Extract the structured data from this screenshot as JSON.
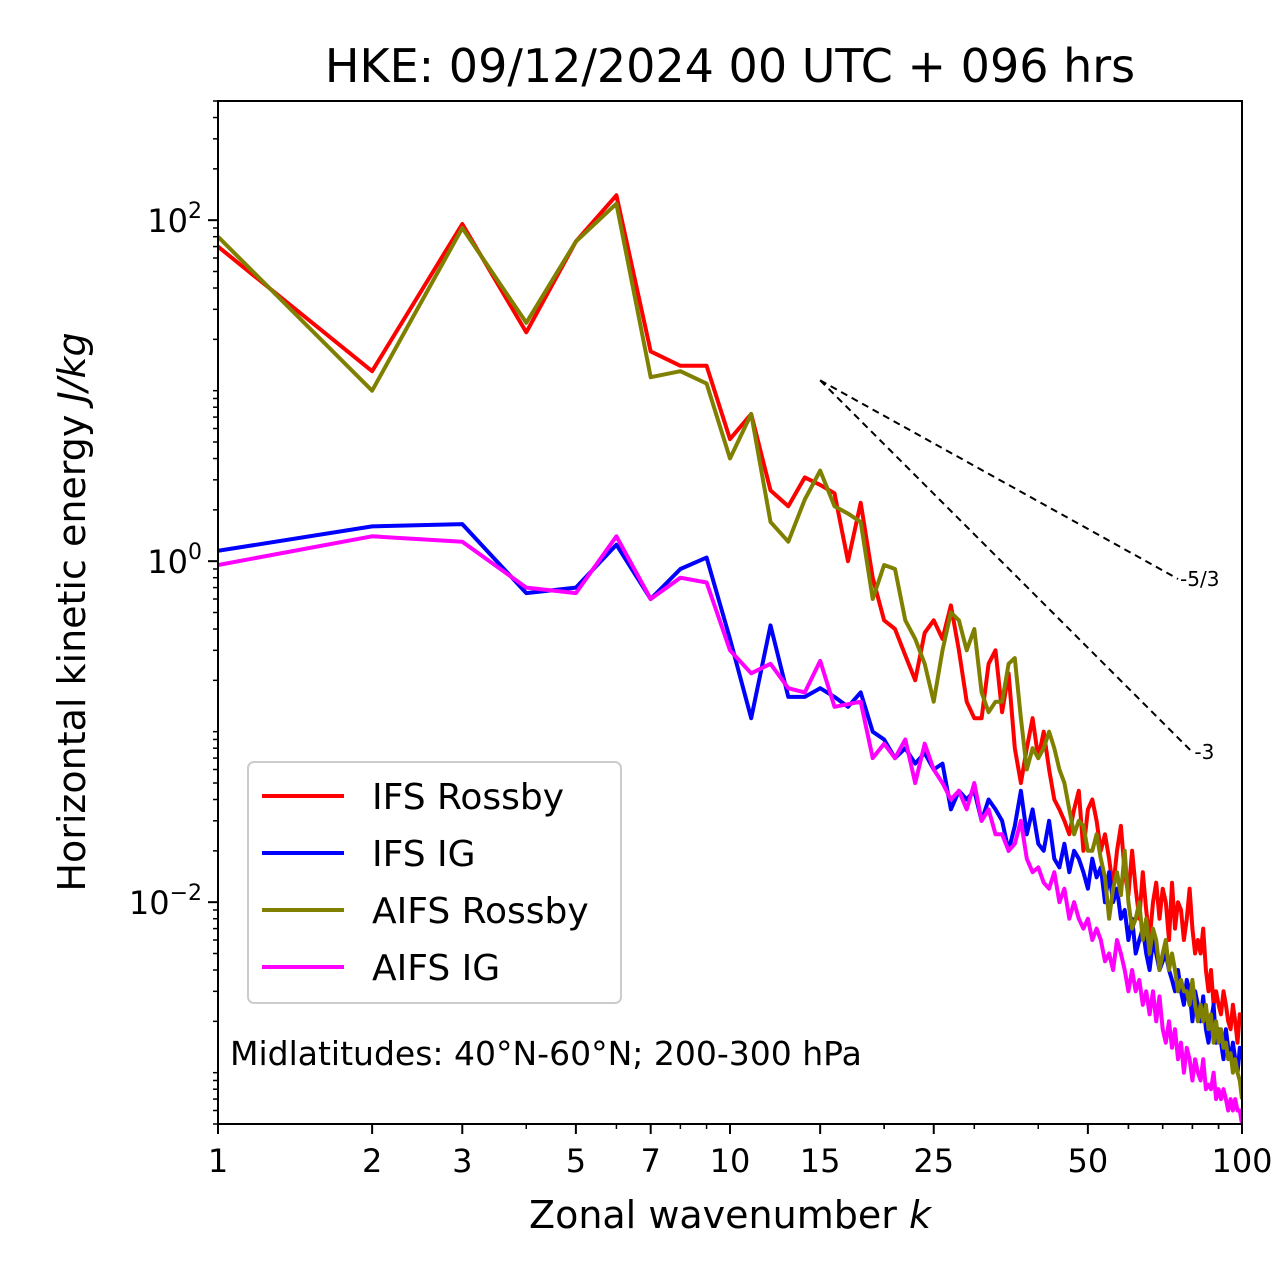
{
  "chart_data": {
    "type": "line",
    "title": "HKE: 09/12/2024 00 UTC + 096 hrs",
    "xlabel": "Zonal wavenumber",
    "xlabel_var": "k",
    "ylabel": "Horizontal kinetic energy",
    "ylabel_unit": "J/kg",
    "xscale": "log",
    "yscale": "log",
    "xlim": [
      1,
      100
    ],
    "ylim": [
      0.0005,
      500
    ],
    "xticks": [
      {
        "value": 1,
        "label": "1"
      },
      {
        "value": 2,
        "label": "2"
      },
      {
        "value": 3,
        "label": "3"
      },
      {
        "value": 5,
        "label": "5"
      },
      {
        "value": 7,
        "label": "7"
      },
      {
        "value": 10,
        "label": "10"
      },
      {
        "value": 15,
        "label": "15"
      },
      {
        "value": 25,
        "label": "25"
      },
      {
        "value": 50,
        "label": "50"
      },
      {
        "value": 100,
        "label": "100"
      }
    ],
    "yticks": [
      {
        "value": 100,
        "base": "10",
        "exp": "2"
      },
      {
        "value": 1,
        "base": "10",
        "exp": "0"
      },
      {
        "value": 0.01,
        "base": "10",
        "exp": "−2"
      }
    ],
    "grid": false,
    "legend_position": "lower-left",
    "annotation": "Midlatitudes: 40°N-60°N; 200-300 hPa",
    "reference_lines": [
      {
        "label": "-5/3",
        "slope": -1.6667,
        "x": [
          15,
          75
        ],
        "y0": 11.5
      },
      {
        "label": "-3",
        "slope": -3,
        "x": [
          15,
          80
        ],
        "y0": 11.5
      }
    ],
    "series": [
      {
        "name": "IFS Rossby",
        "color": "#ff0000",
        "x": [
          1,
          2,
          3,
          4,
          5,
          6,
          7,
          8,
          9,
          10,
          11,
          12,
          13,
          14,
          15,
          16,
          17,
          18,
          19,
          20,
          21,
          22,
          23,
          24,
          25,
          26,
          27,
          28,
          29,
          30,
          31,
          32,
          33,
          34,
          35,
          36,
          37,
          38,
          39,
          40,
          41,
          42,
          43,
          44,
          45,
          46,
          47,
          48,
          49,
          50,
          51,
          52,
          53,
          54,
          55,
          56,
          57,
          58,
          59,
          60,
          61,
          62,
          63,
          64,
          65,
          66,
          67,
          68,
          69,
          70,
          71,
          72,
          73,
          74,
          75,
          76,
          77,
          78,
          79,
          80,
          81,
          82,
          83,
          84,
          85,
          86,
          87,
          88,
          89,
          90,
          91,
          92,
          93,
          94,
          95,
          96,
          97,
          98,
          99,
          100
        ],
        "y": [
          70,
          13,
          95,
          22,
          75,
          140,
          17,
          14,
          14,
          5.2,
          7.3,
          2.6,
          2.1,
          3.1,
          2.8,
          2.5,
          1.0,
          2.2,
          0.8,
          0.45,
          0.4,
          0.28,
          0.2,
          0.38,
          0.45,
          0.35,
          0.55,
          0.3,
          0.15,
          0.12,
          0.12,
          0.25,
          0.3,
          0.13,
          0.22,
          0.08,
          0.05,
          0.08,
          0.12,
          0.07,
          0.1,
          0.06,
          0.04,
          0.035,
          0.03,
          0.025,
          0.035,
          0.045,
          0.02,
          0.035,
          0.04,
          0.03,
          0.02,
          0.025,
          0.018,
          0.012,
          0.02,
          0.028,
          0.015,
          0.011,
          0.02,
          0.012,
          0.008,
          0.015,
          0.009,
          0.006,
          0.01,
          0.013,
          0.008,
          0.012,
          0.01,
          0.006,
          0.013,
          0.007,
          0.01,
          0.009,
          0.006,
          0.008,
          0.012,
          0.007,
          0.005,
          0.006,
          0.005,
          0.007,
          0.004,
          0.003,
          0.004,
          0.0025,
          0.003,
          0.0025,
          0.0022,
          0.003,
          0.0025,
          0.002,
          0.0018,
          0.0025,
          0.002,
          0.0015,
          0.0022,
          0.002
        ]
      },
      {
        "name": "IFS IG",
        "color": "#0000ff",
        "x": [
          1,
          2,
          3,
          4,
          5,
          6,
          7,
          8,
          9,
          10,
          11,
          12,
          13,
          14,
          15,
          16,
          17,
          18,
          19,
          20,
          21,
          22,
          23,
          24,
          25,
          26,
          27,
          28,
          29,
          30,
          31,
          32,
          33,
          34,
          35,
          36,
          37,
          38,
          39,
          40,
          41,
          42,
          43,
          44,
          45,
          46,
          47,
          48,
          49,
          50,
          51,
          52,
          53,
          54,
          55,
          56,
          57,
          58,
          59,
          60,
          61,
          62,
          63,
          64,
          65,
          66,
          67,
          68,
          69,
          70,
          71,
          72,
          73,
          74,
          75,
          76,
          77,
          78,
          79,
          80,
          81,
          82,
          83,
          84,
          85,
          86,
          87,
          88,
          89,
          90,
          91,
          92,
          93,
          94,
          95,
          96,
          97,
          98,
          99,
          100
        ],
        "y": [
          1.15,
          1.6,
          1.65,
          0.65,
          0.7,
          1.25,
          0.6,
          0.9,
          1.05,
          0.35,
          0.12,
          0.42,
          0.16,
          0.16,
          0.18,
          0.16,
          0.14,
          0.17,
          0.1,
          0.09,
          0.07,
          0.08,
          0.065,
          0.075,
          0.06,
          0.065,
          0.035,
          0.045,
          0.04,
          0.045,
          0.03,
          0.04,
          0.035,
          0.03,
          0.02,
          0.028,
          0.045,
          0.025,
          0.035,
          0.022,
          0.02,
          0.03,
          0.018,
          0.016,
          0.022,
          0.015,
          0.02,
          0.018,
          0.015,
          0.012,
          0.018,
          0.014,
          0.016,
          0.01,
          0.015,
          0.01,
          0.012,
          0.008,
          0.009,
          0.006,
          0.008,
          0.005,
          0.006,
          0.007,
          0.005,
          0.004,
          0.006,
          0.005,
          0.004,
          0.0045,
          0.005,
          0.004,
          0.0035,
          0.003,
          0.004,
          0.003,
          0.0025,
          0.0035,
          0.003,
          0.002,
          0.003,
          0.0025,
          0.002,
          0.0028,
          0.0018,
          0.0015,
          0.002,
          0.0025,
          0.0015,
          0.0018,
          0.0015,
          0.0012,
          0.0018,
          0.0014,
          0.0012,
          0.0015,
          0.0012,
          0.001,
          0.0014,
          0.0012
        ]
      },
      {
        "name": "AIFS Rossby",
        "color": "#808000",
        "x": [
          1,
          2,
          3,
          4,
          5,
          6,
          7,
          8,
          9,
          10,
          11,
          12,
          13,
          14,
          15,
          16,
          17,
          18,
          19,
          20,
          21,
          22,
          23,
          24,
          25,
          26,
          27,
          28,
          29,
          30,
          31,
          32,
          33,
          34,
          35,
          36,
          37,
          38,
          39,
          40,
          41,
          42,
          43,
          44,
          45,
          46,
          47,
          48,
          49,
          50,
          51,
          52,
          53,
          54,
          55,
          56,
          57,
          58,
          59,
          60,
          61,
          62,
          63,
          64,
          65,
          66,
          67,
          68,
          69,
          70,
          71,
          72,
          73,
          74,
          75,
          76,
          77,
          78,
          79,
          80,
          81,
          82,
          83,
          84,
          85,
          86,
          87,
          88,
          89,
          90,
          91,
          92,
          93,
          94,
          95,
          96,
          97,
          98,
          99,
          100
        ],
        "y": [
          80,
          10,
          90,
          25,
          75,
          125,
          12,
          13,
          11,
          4.0,
          7.3,
          1.7,
          1.3,
          2.3,
          3.4,
          2.1,
          1.9,
          1.7,
          0.6,
          0.95,
          0.9,
          0.45,
          0.35,
          0.25,
          0.15,
          0.3,
          0.5,
          0.45,
          0.3,
          0.4,
          0.17,
          0.13,
          0.15,
          0.15,
          0.25,
          0.27,
          0.12,
          0.06,
          0.08,
          0.07,
          0.08,
          0.1,
          0.08,
          0.06,
          0.05,
          0.035,
          0.025,
          0.03,
          0.028,
          0.02,
          0.02,
          0.025,
          0.018,
          0.014,
          0.008,
          0.012,
          0.015,
          0.011,
          0.02,
          0.01,
          0.007,
          0.008,
          0.01,
          0.006,
          0.008,
          0.005,
          0.007,
          0.006,
          0.004,
          0.005,
          0.006,
          0.004,
          0.005,
          0.004,
          0.003,
          0.0035,
          0.003,
          0.003,
          0.0025,
          0.0035,
          0.0025,
          0.002,
          0.0025,
          0.002,
          0.0025,
          0.0018,
          0.0022,
          0.0015,
          0.002,
          0.0015,
          0.0018,
          0.0014,
          0.0015,
          0.0012,
          0.0013,
          0.001,
          0.0012,
          0.001,
          0.0009,
          0.0007
        ]
      },
      {
        "name": "AIFS IG",
        "color": "#ff00ff",
        "x": [
          1,
          2,
          3,
          4,
          5,
          6,
          7,
          8,
          9,
          10,
          11,
          12,
          13,
          14,
          15,
          16,
          17,
          18,
          19,
          20,
          21,
          22,
          23,
          24,
          25,
          26,
          27,
          28,
          29,
          30,
          31,
          32,
          33,
          34,
          35,
          36,
          37,
          38,
          39,
          40,
          41,
          42,
          43,
          44,
          45,
          46,
          47,
          48,
          49,
          50,
          51,
          52,
          53,
          54,
          55,
          56,
          57,
          58,
          59,
          60,
          61,
          62,
          63,
          64,
          65,
          66,
          67,
          68,
          69,
          70,
          71,
          72,
          73,
          74,
          75,
          76,
          77,
          78,
          79,
          80,
          81,
          82,
          83,
          84,
          85,
          86,
          87,
          88,
          89,
          90,
          91,
          92,
          93,
          94,
          95,
          96,
          97,
          98,
          99,
          100
        ],
        "y": [
          0.95,
          1.4,
          1.3,
          0.7,
          0.65,
          1.4,
          0.6,
          0.8,
          0.75,
          0.3,
          0.22,
          0.25,
          0.18,
          0.17,
          0.26,
          0.14,
          0.145,
          0.15,
          0.07,
          0.085,
          0.07,
          0.09,
          0.05,
          0.085,
          0.06,
          0.05,
          0.04,
          0.045,
          0.035,
          0.05,
          0.03,
          0.035,
          0.025,
          0.025,
          0.02,
          0.022,
          0.03,
          0.018,
          0.015,
          0.016,
          0.013,
          0.012,
          0.015,
          0.01,
          0.012,
          0.008,
          0.01,
          0.008,
          0.007,
          0.008,
          0.006,
          0.007,
          0.006,
          0.0045,
          0.005,
          0.004,
          0.006,
          0.005,
          0.004,
          0.003,
          0.004,
          0.003,
          0.0035,
          0.0025,
          0.003,
          0.0022,
          0.003,
          0.002,
          0.0028,
          0.0018,
          0.0015,
          0.002,
          0.0014,
          0.0018,
          0.0012,
          0.0015,
          0.001,
          0.0014,
          0.0012,
          0.0009,
          0.0012,
          0.001,
          0.0009,
          0.0012,
          0.0008,
          0.00085,
          0.0008,
          0.001,
          0.0007,
          0.0008,
          0.0007,
          0.0008,
          0.0007,
          0.0006,
          0.0007,
          0.0006,
          0.0007,
          0.0006,
          0.0006,
          0.0005
        ]
      }
    ]
  }
}
